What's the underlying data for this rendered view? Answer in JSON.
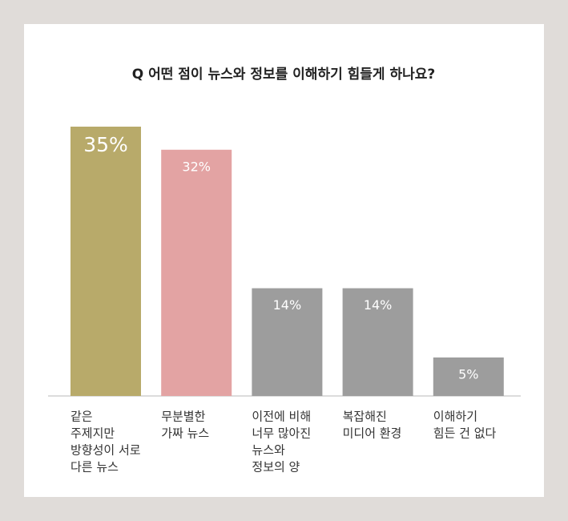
{
  "chart_data": {
    "type": "bar",
    "title": "Q 어떤 점이 뉴스와 정보를 이해하기 힘들게 하나요?",
    "categories": [
      [
        "같은",
        "주제지만",
        "방향성이 서로",
        "다른 뉴스"
      ],
      [
        "무분별한",
        "가짜 뉴스"
      ],
      [
        "이전에 비해",
        "너무 많아진",
        "뉴스와",
        "정보의 양"
      ],
      [
        "복잡해진",
        "미디어 환경"
      ],
      [
        "이해하기",
        "힘든 건 없다"
      ]
    ],
    "values": [
      35,
      32,
      14,
      14,
      5
    ],
    "value_labels": [
      "35%",
      "32%",
      "14%",
      "14%",
      "5%"
    ],
    "colors": [
      "#b8aa6a",
      "#e3a3a3",
      "#9d9d9d",
      "#9d9d9d",
      "#9d9d9d"
    ],
    "ylim": [
      0,
      35
    ]
  }
}
